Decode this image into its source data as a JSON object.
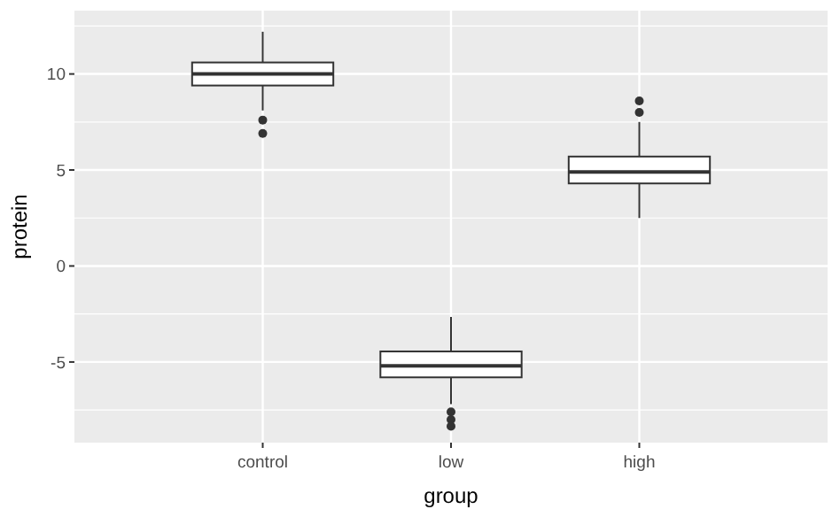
{
  "chart_data": {
    "type": "box",
    "xlabel": "group",
    "ylabel": "protein",
    "categories": [
      "control",
      "low",
      "high"
    ],
    "boxes": [
      {
        "low": 8.1,
        "q1": 9.4,
        "median": 10.0,
        "q3": 10.6,
        "high": 12.2,
        "outliers": [
          7.6,
          6.9
        ]
      },
      {
        "low": -7.2,
        "q1": -5.8,
        "median": -5.2,
        "q3": -4.45,
        "high": -2.65,
        "outliers": [
          -7.6,
          -8.0,
          -8.35
        ]
      },
      {
        "low": 2.5,
        "q1": 4.3,
        "median": 4.9,
        "q3": 5.7,
        "high": 7.5,
        "outliers": [
          8.0,
          8.6
        ]
      }
    ],
    "ylim": [
      -9.2,
      13.3
    ],
    "yticks": [
      -5,
      0,
      5,
      10
    ],
    "grid": true
  }
}
